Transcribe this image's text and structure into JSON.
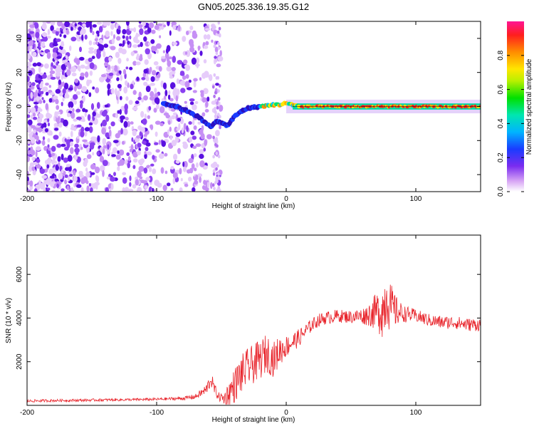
{
  "title": "GN05.2025.336.19.35.G12",
  "chart_data": [
    {
      "type": "heatmap",
      "title": "GN05.2025.336.19.35.G12",
      "xlabel": "Height of straight line (km)",
      "ylabel": "Frequency (Hz)",
      "xlim": [
        -200,
        150
      ],
      "ylim": [
        -50,
        50
      ],
      "x_ticks": [
        "-200",
        "-100",
        "0",
        "100"
      ],
      "x_tick_values": [
        -200,
        -100,
        0,
        100
      ],
      "y_ticks": [
        "40",
        "20",
        "0",
        "-20",
        "-40"
      ],
      "y_tick_values": [
        40,
        20,
        0,
        -20,
        -40
      ],
      "colorbar": {
        "label": "Normalized spectral amplitude",
        "range": [
          0,
          1
        ],
        "ticks": [
          "0.0",
          "0.2",
          "0.4",
          "0.6",
          "0.8"
        ],
        "tick_values": [
          0,
          0.2,
          0.4,
          0.6,
          0.8
        ]
      },
      "ridge": {
        "x": [
          -95,
          -85,
          -75,
          -68,
          -62,
          -58,
          -54,
          -50,
          -45,
          -40,
          -35,
          -30,
          -25,
          -20,
          -15,
          -10,
          -5,
          0,
          5,
          10,
          40,
          80,
          120,
          150
        ],
        "y": [
          2,
          0,
          -3,
          -6,
          -10,
          -12,
          -8,
          -10,
          -11,
          -6,
          -3,
          -1,
          -0.5,
          0,
          0.5,
          1,
          1,
          2,
          1,
          0,
          0,
          0,
          0,
          0
        ]
      }
    },
    {
      "type": "line",
      "xlabel": "Height of straight line (km)",
      "ylabel": "SNR (10 * v/v)",
      "xlim": [
        -200,
        150
      ],
      "ylim": [
        0,
        7800
      ],
      "x_ticks": [
        "-200",
        "-100",
        "0",
        "100"
      ],
      "x_tick_values": [
        -200,
        -100,
        0,
        100
      ],
      "y_ticks": [
        "2000",
        "4000",
        "6000"
      ],
      "y_tick_values": [
        2000,
        4000,
        6000
      ],
      "series": [
        {
          "color": "#e8232a",
          "x": [
            -200,
            -180,
            -160,
            -140,
            -120,
            -100,
            -80,
            -70,
            -62,
            -58,
            -55,
            -52,
            -48,
            -44,
            -40,
            -35,
            -30,
            -25,
            -20,
            -15,
            -10,
            -5,
            0,
            5,
            10,
            15,
            20,
            25,
            30,
            40,
            50,
            60,
            65,
            70,
            75,
            78,
            80,
            85,
            90,
            100,
            110,
            120,
            130,
            140,
            150
          ],
          "y": [
            200,
            220,
            230,
            250,
            260,
            280,
            320,
            400,
            700,
            1200,
            700,
            400,
            300,
            600,
            900,
            1400,
            1700,
            1900,
            2100,
            2400,
            2100,
            2500,
            2700,
            2900,
            3100,
            3400,
            3700,
            3900,
            4000,
            4100,
            4050,
            4100,
            4200,
            4300,
            4400,
            5200,
            4500,
            4300,
            4200,
            4100,
            3900,
            3800,
            3800,
            3700,
            3700
          ],
          "noise": [
            60,
            60,
            60,
            60,
            60,
            60,
            80,
            120,
            250,
            350,
            250,
            200,
            300,
            600,
            800,
            900,
            900,
            900,
            900,
            900,
            800,
            700,
            500,
            450,
            400,
            350,
            300,
            300,
            300,
            300,
            300,
            400,
            600,
            900,
            1400,
            1600,
            1200,
            700,
            400,
            300,
            300,
            300,
            300,
            300,
            300
          ]
        }
      ]
    }
  ]
}
